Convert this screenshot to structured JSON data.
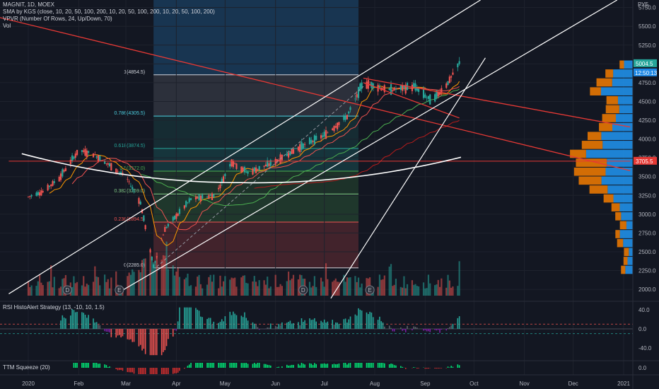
{
  "legend": {
    "title": "MAGNIT, 1D, MOEX",
    "sma": "SMA by KGS (close, 10, 20, 50, 100, 200, 10, 20, 50, 100, 200, 10, 20, 50, 100, 200)",
    "vpvr": "VPVR (Number Of Rows, 24, Up/Down, 70)",
    "vol": "Vol",
    "rsi": "RSI HistoAlert Strategy (13, -10, 10, 1.5)",
    "ttm": "TTM Squeeze (20)"
  },
  "currency": "РУБ",
  "badges": {
    "last_price": "5004.5",
    "countdown": "12:50:13",
    "hline_price": "3705.5"
  },
  "event_markers": [
    "D",
    "E",
    "D",
    "E"
  ],
  "colors": {
    "bg": "#131722",
    "up": "#26a69a",
    "down": "#ef5350",
    "trendline": "#e53935",
    "channel": "#ffffff",
    "vpvr_up": "#2196f3",
    "vpvr_down": "#f57c00",
    "fib_blue": "#1e4e79",
    "fib_teal": "#26a69a"
  },
  "chart_data": [
    {
      "type": "candlestick",
      "title": "MAGNIT, 1D, MOEX",
      "x_tick_labels": [
        "2020",
        "Feb",
        "Mar",
        "Apr",
        "May",
        "Jun",
        "Jul",
        "Aug",
        "Sep",
        "Oct",
        "Nov",
        "Dec",
        "2021"
      ],
      "y_tick_labels": [
        "2000.0",
        "2250.0",
        "2500.0",
        "2750.0",
        "3000.0",
        "3250.0",
        "3500.0",
        "3750.0",
        "4000.0",
        "4250.0",
        "4500.0",
        "4750.0",
        "5000.0",
        "5250.0",
        "5500.0",
        "5750.0"
      ],
      "ylim": [
        1850,
        5850
      ],
      "last_price": 5004.5,
      "horizontal_line": 3705.5,
      "price_path": [
        [
          "2020-01-01",
          3230
        ],
        [
          "2020-01-10",
          3300
        ],
        [
          "2020-01-20",
          3480
        ],
        [
          "2020-02-01",
          3850
        ],
        [
          "2020-02-10",
          3800
        ],
        [
          "2020-02-20",
          3650
        ],
        [
          "2020-03-01",
          3500
        ],
        [
          "2020-03-10",
          3150
        ],
        [
          "2020-03-18",
          2300
        ],
        [
          "2020-03-25",
          2800
        ],
        [
          "2020-04-10",
          3200
        ],
        [
          "2020-04-25",
          3250
        ],
        [
          "2020-05-05",
          3700
        ],
        [
          "2020-05-15",
          3550
        ],
        [
          "2020-06-01",
          3700
        ],
        [
          "2020-06-15",
          3880
        ],
        [
          "2020-07-01",
          4050
        ],
        [
          "2020-07-15",
          4300
        ],
        [
          "2020-07-25",
          4750
        ],
        [
          "2020-08-10",
          4650
        ],
        [
          "2020-08-25",
          4700
        ],
        [
          "2020-09-05",
          4500
        ],
        [
          "2020-09-15",
          4750
        ],
        [
          "2020-09-22",
          5004.5
        ]
      ],
      "fibonacci": [
        {
          "level": "1",
          "price": 4854.5
        },
        {
          "level": "0.786",
          "price": 4305.5
        },
        {
          "level": "0.618",
          "price": 3874.5
        },
        {
          "level": "0.5",
          "price": 3572.0
        },
        {
          "level": "0.382",
          "price": 3269.0
        },
        {
          "level": "0.236",
          "price": 2894.5
        },
        {
          "level": "0",
          "price": 2285.0
        }
      ],
      "volume_profile_price_range": [
        2200,
        5050
      ]
    },
    {
      "type": "histogram",
      "title": "RSI HistoAlert Strategy (13, -10, 10, 1.5)",
      "y_tick_labels": [
        "40.0",
        "0.0",
        "-40.0"
      ],
      "ylim": [
        -60,
        55
      ],
      "levels": [
        10,
        -10
      ]
    },
    {
      "type": "histogram",
      "title": "TTM Squeeze (20)",
      "y_tick_labels": [
        "0.0"
      ]
    }
  ]
}
